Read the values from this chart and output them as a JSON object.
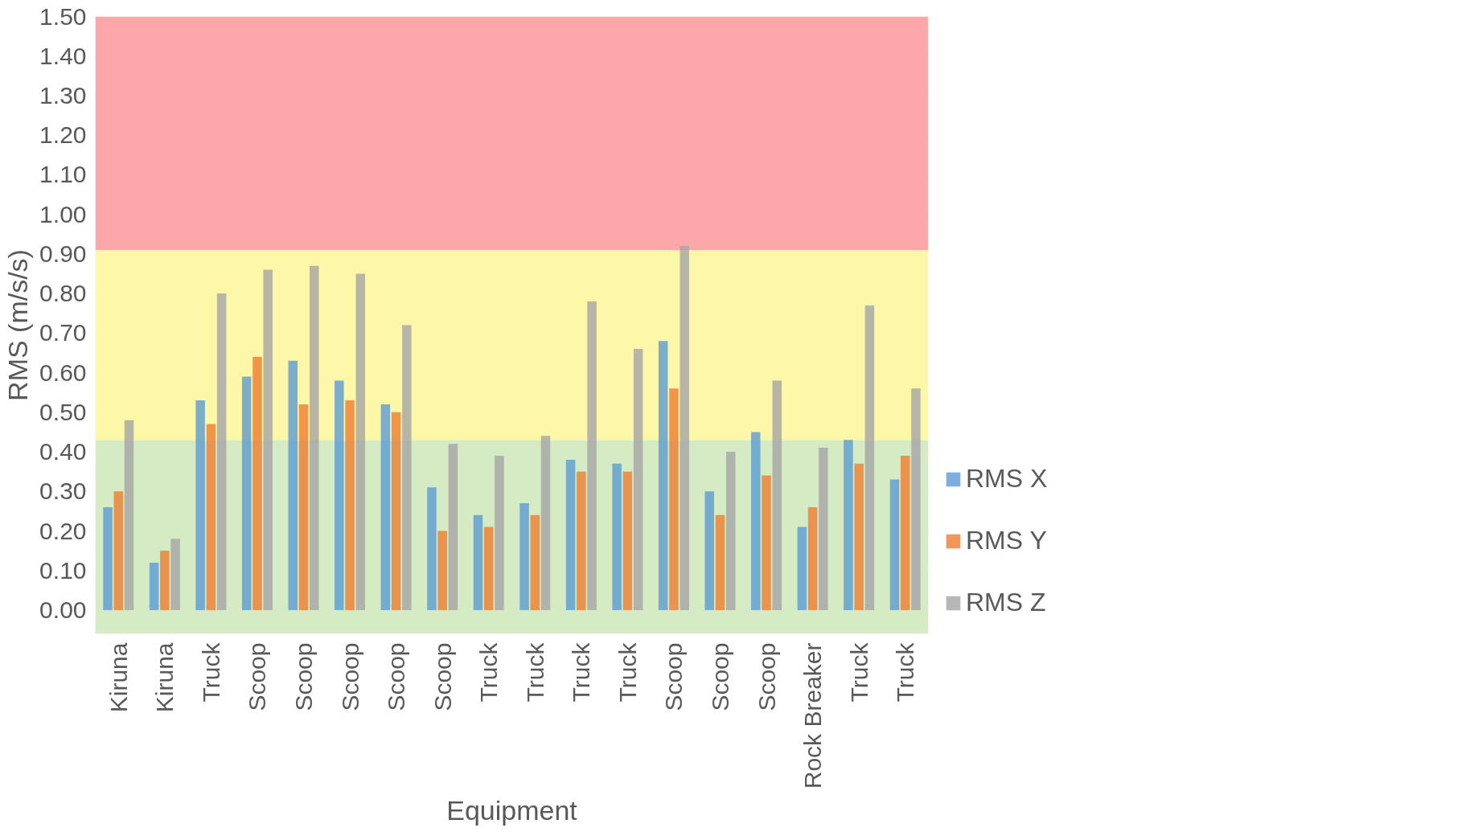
{
  "chart_data": {
    "type": "bar",
    "xlabel": "Equipment",
    "ylabel": "RMS (m/s/s)",
    "categories": [
      "Kiruna",
      "Kiruna",
      "Truck",
      "Scoop",
      "Scoop",
      "Scoop",
      "Scoop",
      "Scoop",
      "Truck",
      "Truck",
      "Truck",
      "Truck",
      "Scoop",
      "Scoop",
      "Scoop",
      "Rock Breaker",
      "Truck",
      "Truck"
    ],
    "series": [
      {
        "name": "RMS X",
        "color": "#5b9bd5",
        "values": [
          0.26,
          0.12,
          0.53,
          0.59,
          0.63,
          0.58,
          0.52,
          0.31,
          0.24,
          0.27,
          0.38,
          0.37,
          0.68,
          0.3,
          0.45,
          0.21,
          0.43,
          0.33
        ]
      },
      {
        "name": "RMS Y",
        "color": "#ed7d31",
        "values": [
          0.3,
          0.15,
          0.47,
          0.64,
          0.52,
          0.53,
          0.5,
          0.2,
          0.21,
          0.24,
          0.35,
          0.35,
          0.56,
          0.24,
          0.34,
          0.26,
          0.37,
          0.39
        ]
      },
      {
        "name": "RMS Z",
        "color": "#a5a5a5",
        "values": [
          0.48,
          0.18,
          0.8,
          0.86,
          0.87,
          0.85,
          0.72,
          0.42,
          0.39,
          0.44,
          0.78,
          0.66,
          0.92,
          0.4,
          0.58,
          0.41,
          0.77,
          0.56
        ]
      }
    ],
    "ylim": [
      -0.06,
      1.5
    ],
    "yticks": [
      {
        "value": 0,
        "label": "0.00"
      },
      {
        "value": 0.1,
        "label": "0.10"
      },
      {
        "value": 0.2,
        "label": "0.20"
      },
      {
        "value": 0.3,
        "label": "0.30"
      },
      {
        "value": 0.4,
        "label": "0.40"
      },
      {
        "value": 0.5,
        "label": "0.50"
      },
      {
        "value": 0.6,
        "label": "0.60"
      },
      {
        "value": 0.7,
        "label": "0.70"
      },
      {
        "value": 0.8,
        "label": "0.80"
      },
      {
        "value": 0.9,
        "label": "0.90"
      },
      {
        "value": 1.0,
        "label": "1.00"
      },
      {
        "value": 1.1,
        "label": "1.10"
      },
      {
        "value": 1.2,
        "label": "1.20"
      },
      {
        "value": 1.3,
        "label": "1.30"
      },
      {
        "value": 1.4,
        "label": "1.40"
      },
      {
        "value": 1.5,
        "label": "1.50"
      }
    ],
    "bands": [
      {
        "axis": "y",
        "from": -0.06,
        "to": 0.43,
        "color": "#d5ebc4"
      },
      {
        "axis": "y",
        "from": 0.43,
        "to": 0.91,
        "color": "#fdf8a8"
      },
      {
        "axis": "y",
        "from": 0.91,
        "to": 1.5,
        "color": "#fca8aa"
      }
    ],
    "grid": "y",
    "legend": "right"
  }
}
